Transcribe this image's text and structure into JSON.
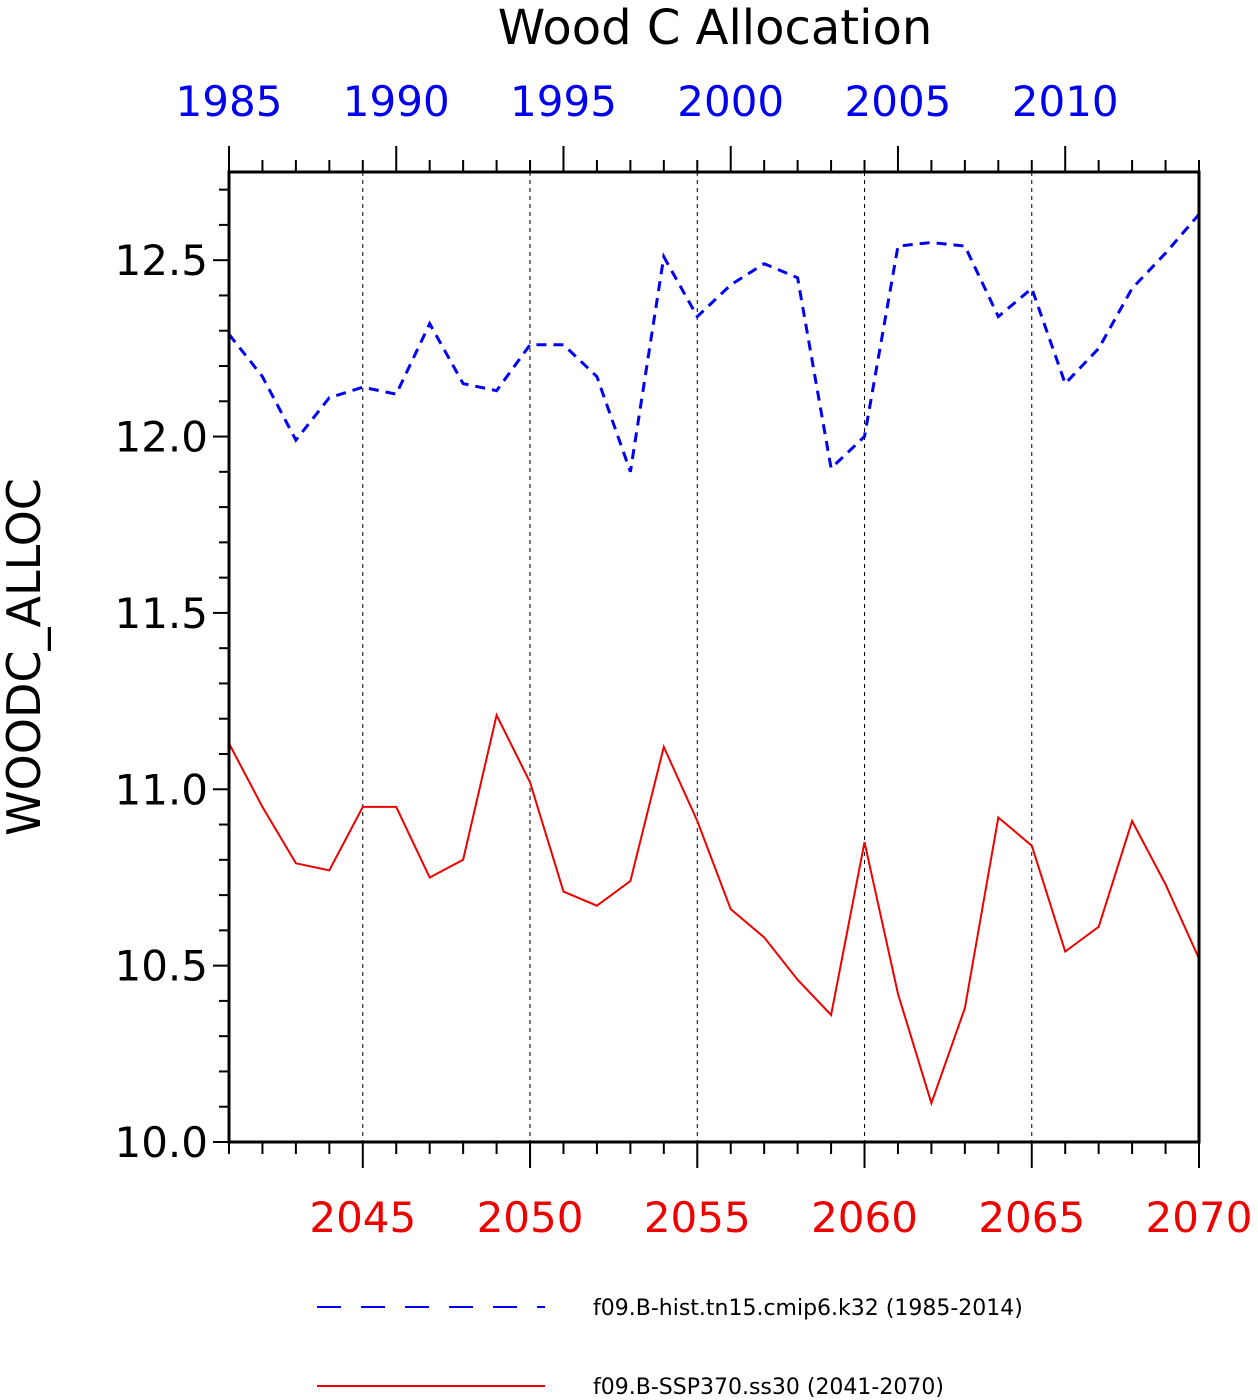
{
  "chart_data": {
    "type": "line",
    "title": "Wood C Allocation",
    "ylabel": "WOODC_ALLOC",
    "ylim": [
      10.0,
      12.75
    ],
    "yticks": [
      "10.0",
      "10.5",
      "11.0",
      "11.5",
      "12.0",
      "12.5"
    ],
    "top_axis": {
      "range": [
        1985,
        2014
      ],
      "ticks": [
        "1985",
        "1990",
        "1995",
        "2000",
        "2005",
        "2010"
      ],
      "color": "#0000ee"
    },
    "bottom_axis": {
      "range": [
        2041,
        2070
      ],
      "ticks": [
        "2045",
        "2050",
        "2055",
        "2060",
        "2065",
        "2070"
      ],
      "color": "#ee0000"
    },
    "grid": "vertical dashed",
    "legend_position": "bottom",
    "series": [
      {
        "name": "f09.B-hist.tn15.cmip6.k32 (1985-2014)",
        "color": "#0000ee",
        "style": "dashed",
        "axis": "top",
        "x": [
          1985,
          1986,
          1987,
          1988,
          1989,
          1990,
          1991,
          1992,
          1993,
          1994,
          1995,
          1996,
          1997,
          1998,
          1999,
          2000,
          2001,
          2002,
          2003,
          2004,
          2005,
          2006,
          2007,
          2008,
          2009,
          2010,
          2011,
          2012,
          2013,
          2014
        ],
        "values": [
          12.29,
          12.17,
          11.99,
          12.11,
          12.14,
          12.12,
          12.32,
          12.15,
          12.13,
          12.26,
          12.26,
          12.17,
          11.9,
          12.51,
          12.34,
          12.43,
          12.49,
          12.45,
          11.91,
          12.0,
          12.54,
          12.55,
          12.54,
          12.34,
          12.42,
          12.15,
          12.25,
          12.42,
          12.52,
          12.63
        ]
      },
      {
        "name": "f09.B-SSP370.ss30 (2041-2070)",
        "color": "#ee0000",
        "style": "solid",
        "axis": "bottom",
        "x": [
          2041,
          2042,
          2043,
          2044,
          2045,
          2046,
          2047,
          2048,
          2049,
          2050,
          2051,
          2052,
          2053,
          2054,
          2055,
          2056,
          2057,
          2058,
          2059,
          2060,
          2061,
          2062,
          2063,
          2064,
          2065,
          2066,
          2067,
          2068,
          2069,
          2070
        ],
        "values": [
          11.13,
          10.95,
          10.79,
          10.77,
          10.95,
          10.95,
          10.75,
          10.8,
          11.21,
          11.02,
          10.71,
          10.67,
          10.74,
          11.12,
          10.91,
          10.66,
          10.58,
          10.46,
          10.36,
          10.85,
          10.42,
          10.11,
          10.38,
          10.92,
          10.84,
          10.54,
          10.61,
          10.91,
          10.73,
          10.52
        ]
      }
    ]
  }
}
